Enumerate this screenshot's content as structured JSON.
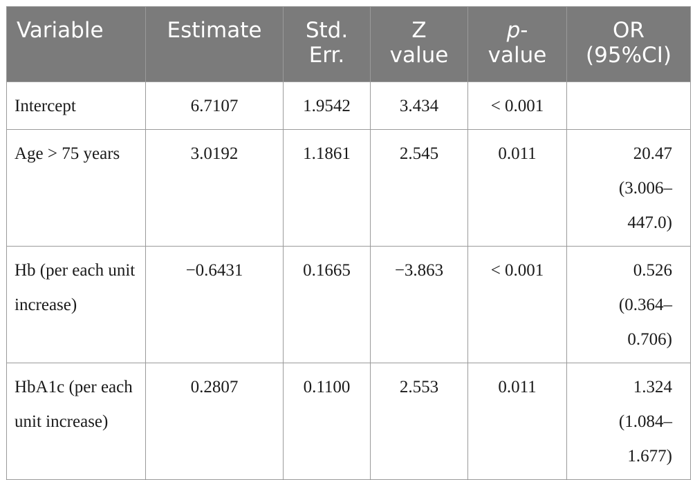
{
  "headers": {
    "variable": "Variable",
    "estimate": "Estimate",
    "std_err_1": "Std.",
    "std_err_2": "Err.",
    "z_value_1": "Z",
    "z_value_2": "value",
    "p_value_1": "p",
    "p_value_1_suffix": "-",
    "p_value_2": "value",
    "or_1": "OR",
    "or_2": "(95%CI)"
  },
  "rows": [
    {
      "variable": "Intercept",
      "estimate": "6.7107",
      "std_err": "1.9542",
      "z_value": "3.434",
      "p_value": "< 0.001",
      "or_lines": [
        "",
        "",
        ""
      ]
    },
    {
      "variable": "Age > 75 years",
      "estimate": "3.0192",
      "std_err": "1.1861",
      "z_value": "2.545",
      "p_value": "0.011",
      "or_lines": [
        "20.47",
        "(3.006–",
        "447.0)"
      ]
    },
    {
      "variable": "Hb (per each unit increase)",
      "estimate": "−0.6431",
      "std_err": "0.1665",
      "z_value": "−3.863",
      "p_value": "< 0.001",
      "or_lines": [
        "0.526",
        "(0.364–",
        "0.706)"
      ]
    },
    {
      "variable": "HbA1c (per each unit increase)",
      "estimate": "0.2807",
      "std_err": "0.1100",
      "z_value": "2.553",
      "p_value": "0.011",
      "or_lines": [
        "1.324",
        "(1.084–",
        "1.677)"
      ]
    }
  ]
}
